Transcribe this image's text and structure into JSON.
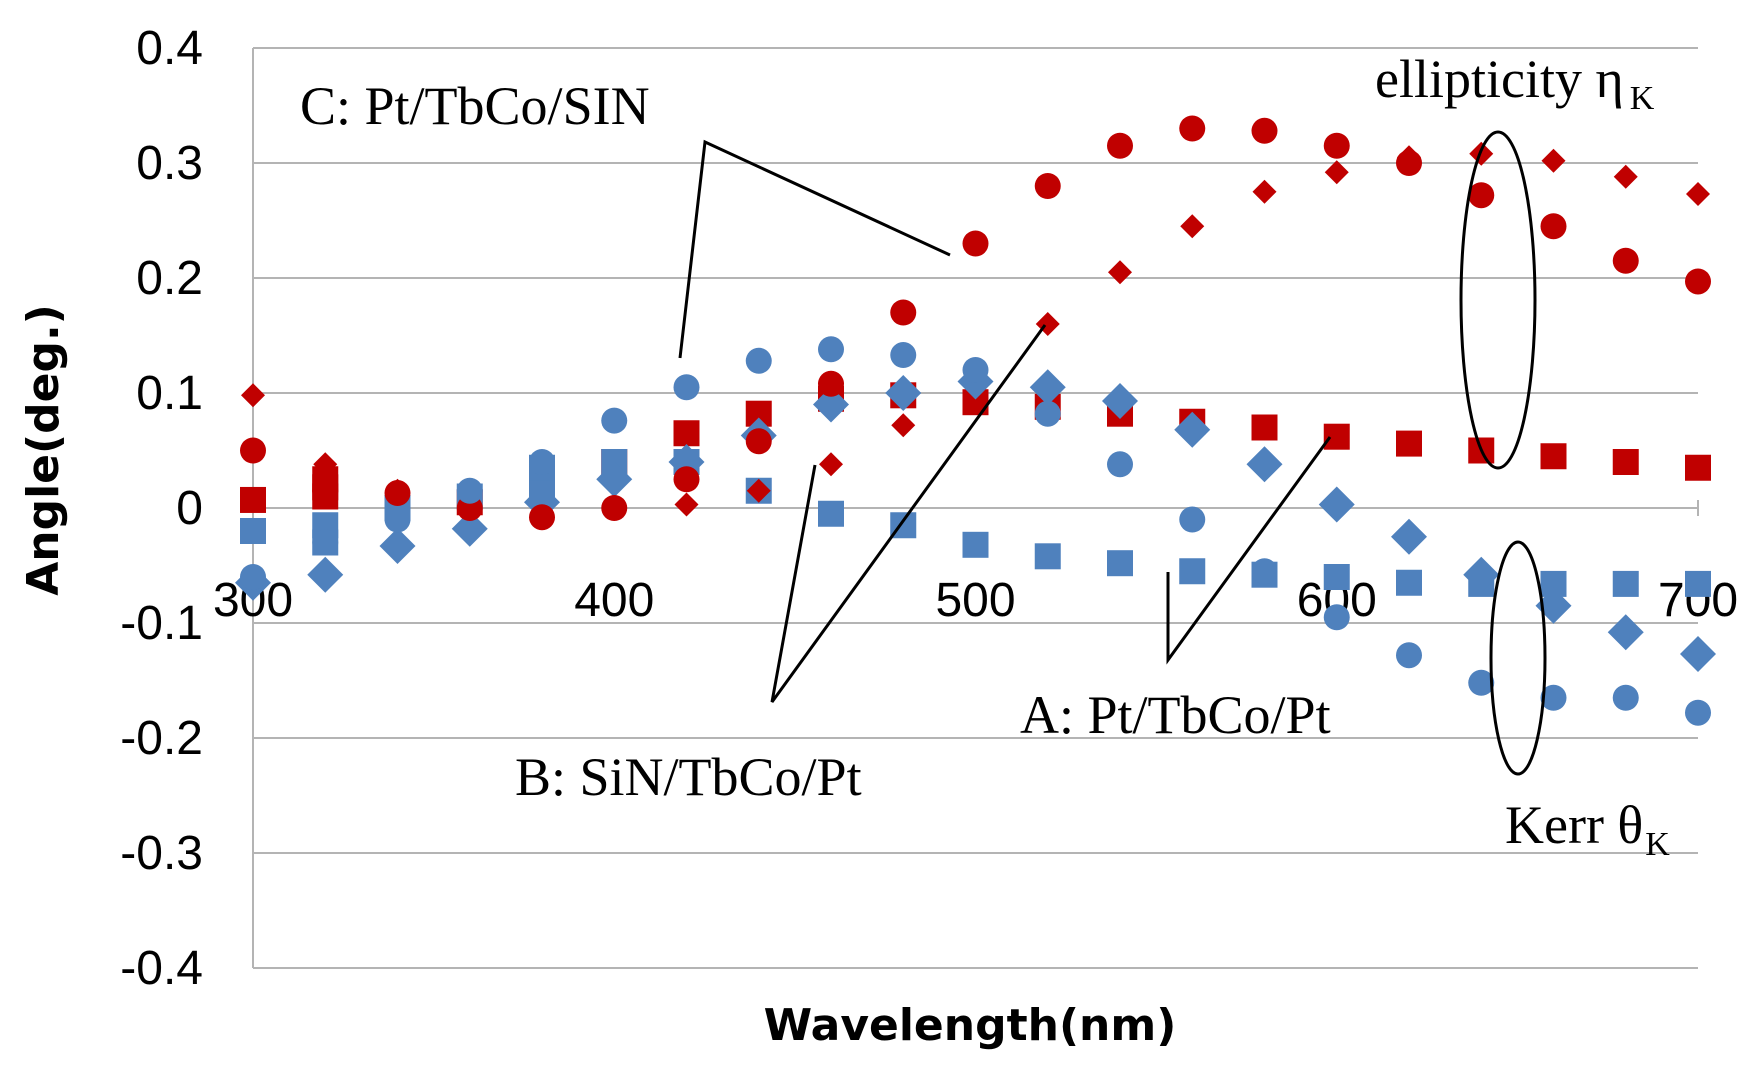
{
  "chart_data": {
    "type": "scatter",
    "title": "",
    "xlabel": "Wavelength(nm)",
    "ylabel": "Angle(deg.)",
    "xlim": [
      300,
      700
    ],
    "ylim": [
      -0.4,
      0.4
    ],
    "x_ticks": [
      300,
      400,
      500,
      600,
      700
    ],
    "y_ticks": [
      -0.4,
      -0.3,
      -0.2,
      -0.1,
      0,
      0.1,
      0.2,
      0.3,
      0.4
    ],
    "y_tick_labels": [
      "-0.4",
      "-0.3",
      "-0.2",
      "-0.1",
      "0",
      "0.1",
      "0.2",
      "0.3",
      "0.4"
    ],
    "x_tick_labels": [
      "300",
      "400",
      "500",
      "600",
      "700"
    ],
    "grid": "horizontal",
    "colors": {
      "ellipticity": "#c00000",
      "kerr": "#4f81bd"
    },
    "series": [
      {
        "name": "A: Pt/TbCo/Pt ellipticity",
        "marker": "square",
        "color": "#c00000",
        "x": [
          300,
          320,
          320,
          320,
          340,
          360,
          380,
          400,
          420,
          440,
          460,
          480,
          500,
          520,
          540,
          560,
          580,
          600,
          620,
          640,
          660,
          680,
          700
        ],
        "y": [
          0.007,
          0.01,
          0.018,
          0.025,
          0.0,
          0.005,
          0.015,
          0.04,
          0.065,
          0.082,
          0.095,
          0.098,
          0.092,
          0.088,
          0.082,
          0.075,
          0.07,
          0.062,
          0.056,
          0.05,
          0.045,
          0.04,
          0.035
        ]
      },
      {
        "name": "A: Pt/TbCo/Pt Kerr",
        "marker": "square",
        "color": "#4f81bd",
        "x": [
          300,
          320,
          320,
          340,
          360,
          380,
          380,
          400,
          420,
          440,
          460,
          480,
          500,
          520,
          540,
          560,
          580,
          600,
          620,
          640,
          660,
          680,
          700
        ],
        "y": [
          -0.02,
          -0.015,
          -0.03,
          0.0,
          0.01,
          0.02,
          0.035,
          0.04,
          0.04,
          0.015,
          -0.005,
          -0.015,
          -0.032,
          -0.042,
          -0.048,
          -0.055,
          -0.058,
          -0.06,
          -0.065,
          -0.066,
          -0.066,
          -0.066,
          -0.066
        ]
      },
      {
        "name": "B: SiN/TbCo/Pt ellipticity",
        "marker": "diamond",
        "color": "#c00000",
        "x": [
          300,
          320,
          320,
          340,
          360,
          380,
          400,
          420,
          440,
          460,
          480,
          500,
          520,
          540,
          560,
          580,
          600,
          620,
          640,
          660,
          680,
          700
        ],
        "y": [
          0.098,
          0.038,
          0.025,
          0.015,
          0.0,
          -0.005,
          0.0,
          0.003,
          0.015,
          0.038,
          0.072,
          0.11,
          0.16,
          0.205,
          0.245,
          0.275,
          0.292,
          0.305,
          0.308,
          0.302,
          0.288,
          0.273
        ]
      },
      {
        "name": "B: SiN/TbCo/Pt Kerr",
        "marker": "diamond",
        "color": "#4f81bd",
        "x": [
          300,
          320,
          340,
          360,
          380,
          400,
          420,
          440,
          460,
          480,
          500,
          520,
          540,
          560,
          580,
          600,
          620,
          640,
          660,
          680,
          700
        ],
        "y": [
          -0.065,
          -0.058,
          -0.033,
          -0.018,
          0.005,
          0.025,
          0.04,
          0.063,
          0.09,
          0.1,
          0.11,
          0.105,
          0.093,
          0.068,
          0.038,
          0.003,
          -0.025,
          -0.058,
          -0.085,
          -0.108,
          -0.127
        ]
      },
      {
        "name": "C: Pt/TbCo/SIN ellipticity",
        "marker": "circle",
        "color": "#c00000",
        "x": [
          300,
          320,
          340,
          360,
          380,
          400,
          420,
          440,
          460,
          480,
          500,
          520,
          540,
          560,
          580,
          600,
          620,
          640,
          660,
          680,
          700
        ],
        "y": [
          0.05,
          0.015,
          0.013,
          0.0,
          -0.008,
          0.0,
          0.025,
          0.058,
          0.108,
          0.17,
          0.23,
          0.28,
          0.315,
          0.33,
          0.328,
          0.315,
          0.3,
          0.272,
          0.245,
          0.215,
          0.197
        ]
      },
      {
        "name": "C: Pt/TbCo/SIN Kerr",
        "marker": "circle",
        "color": "#4f81bd",
        "x": [
          300,
          320,
          340,
          360,
          380,
          400,
          420,
          440,
          460,
          480,
          500,
          520,
          540,
          560,
          580,
          600,
          620,
          640,
          660,
          680,
          700
        ],
        "y": [
          -0.06,
          -0.03,
          -0.01,
          0.015,
          0.04,
          0.076,
          0.105,
          0.128,
          0.138,
          0.133,
          0.12,
          0.082,
          0.038,
          -0.01,
          -0.055,
          -0.095,
          -0.128,
          -0.152,
          -0.165,
          -0.165,
          -0.178
        ]
      }
    ],
    "annotations": {
      "c_label": "C: Pt/TbCo/SIN",
      "b_label": "B: SiN/TbCo/Pt",
      "a_label": "A: Pt/TbCo/Pt",
      "ellipticity_label": "ellipticity η",
      "ellipticity_sub": "K",
      "kerr_label": "Kerr θ",
      "kerr_sub": "K"
    }
  }
}
